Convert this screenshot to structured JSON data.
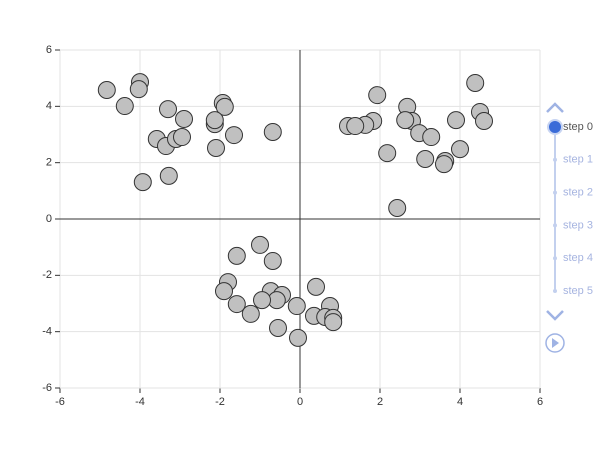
{
  "chart_data": {
    "type": "scatter",
    "color": "#c0c0c0",
    "grid": true,
    "xlim": [
      -6,
      6
    ],
    "ylim": [
      -6,
      6
    ],
    "xticks": [
      -6,
      -4,
      -2,
      0,
      2,
      4,
      6
    ],
    "yticks": [
      -6,
      -4,
      -2,
      0,
      2,
      4,
      6
    ],
    "x": [
      -4.83,
      -4.0,
      -4.03,
      -4.38,
      -3.3,
      -2.9,
      -3.58,
      -3.35,
      -3.1,
      -2.95,
      -3.93,
      -3.28,
      -1.93,
      -1.88,
      -2.13,
      -2.13,
      -1.65,
      -2.1,
      -0.68,
      4.38,
      4.5,
      4.6,
      3.9,
      1.93,
      2.68,
      2.8,
      2.63,
      1.83,
      1.63,
      1.2,
      1.38,
      2.98,
      3.28,
      2.18,
      3.13,
      3.63,
      3.6,
      4.0,
      2.43,
      -1.0,
      -1.58,
      -0.68,
      -1.8,
      -1.9,
      -0.73,
      -0.45,
      -0.58,
      -0.95,
      -1.58,
      -1.23,
      -0.55,
      -0.08,
      0.4,
      0.75,
      0.35,
      0.63,
      0.83,
      0.83,
      -0.05
    ],
    "values": [
      4.58,
      4.86,
      4.61,
      4.01,
      3.9,
      3.55,
      2.84,
      2.59,
      2.84,
      2.91,
      1.31,
      1.53,
      4.12,
      3.98,
      3.37,
      3.51,
      2.98,
      2.52,
      3.09,
      4.83,
      3.8,
      3.48,
      3.51,
      4.4,
      3.98,
      3.48,
      3.51,
      3.48,
      3.34,
      3.3,
      3.3,
      3.05,
      2.91,
      2.34,
      2.13,
      2.06,
      1.95,
      2.48,
      0.39,
      -0.92,
      -1.31,
      -1.49,
      -2.24,
      -2.56,
      -2.56,
      -2.7,
      -2.88,
      -2.88,
      -3.02,
      -3.37,
      -3.87,
      -3.09,
      -2.41,
      -3.09,
      -3.44,
      -3.48,
      -3.51,
      -3.66,
      -4.22
    ],
    "timeline": {
      "steps": [
        "step 0",
        "step 1",
        "step 2",
        "step 3",
        "step 4",
        "step 5"
      ],
      "current": 0
    }
  }
}
